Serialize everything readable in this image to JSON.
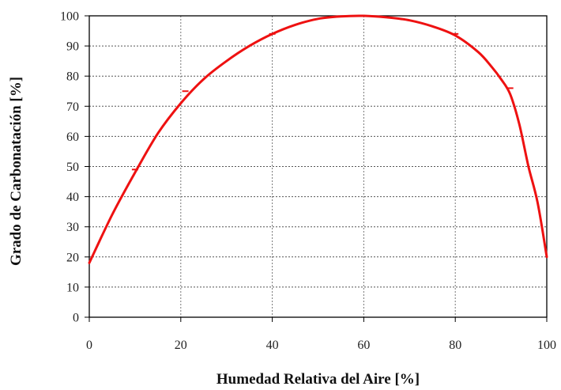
{
  "chart_data": {
    "type": "line",
    "title": "",
    "xlabel": "Humedad Relativa del Aire [%]",
    "ylabel": "Grado de Carbonatación [%]",
    "xlim": [
      0,
      100
    ],
    "ylim": [
      0,
      100
    ],
    "xticks": [
      0,
      20,
      40,
      60,
      80,
      100
    ],
    "yticks": [
      0,
      10,
      20,
      30,
      40,
      50,
      60,
      70,
      80,
      90,
      100
    ],
    "grid": true,
    "legend": "none",
    "series": [
      {
        "color": "#ee1111",
        "x": [
          0,
          5,
          10,
          15,
          20,
          25,
          30,
          35,
          40,
          45,
          50,
          55,
          60,
          65,
          70,
          75,
          80,
          85,
          88,
          90,
          92,
          94,
          96,
          98,
          100
        ],
        "y": [
          18,
          34,
          48,
          61,
          71,
          79,
          85,
          90,
          94,
          97,
          99,
          99.8,
          100,
          99.5,
          98.5,
          96.5,
          93.5,
          88,
          83,
          79,
          74,
          64,
          50,
          38,
          20
        ],
        "markers_x": [
          10,
          21,
          40,
          80,
          92
        ],
        "markers_y": [
          49,
          75,
          94,
          94,
          76
        ]
      }
    ]
  }
}
